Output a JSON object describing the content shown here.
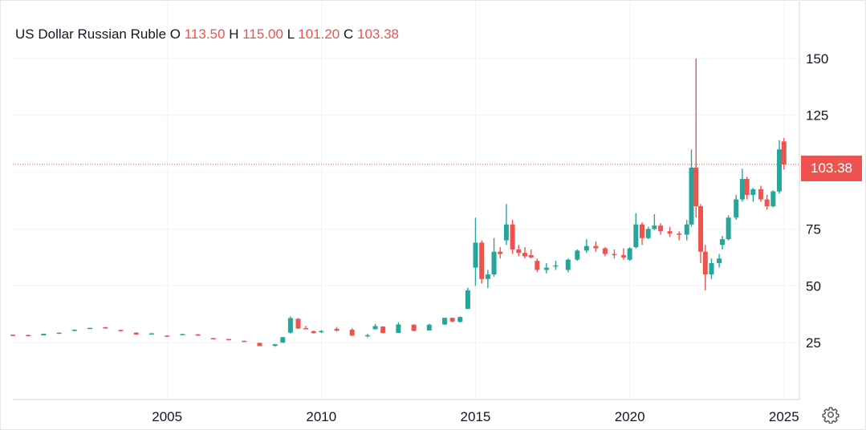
{
  "legend": {
    "title": "US Dollar Russian Ruble",
    "o_label": "O",
    "o_value": "113.50",
    "h_label": "H",
    "h_value": "115.00",
    "l_label": "L",
    "l_value": "101.20",
    "c_label": "C",
    "c_value": "103.38"
  },
  "last_price_label": "103.38",
  "icons": {
    "settings": "gear-icon"
  },
  "colors": {
    "up": "#26a69a",
    "down": "#ef5350",
    "grid": "#f0f3fa",
    "text": "#131722"
  },
  "chart_data": {
    "type": "candlestick",
    "title": "US Dollar Russian Ruble",
    "xlabel": "",
    "ylabel": "",
    "x_ticks": [
      "2005",
      "2010",
      "2015",
      "2020",
      "2025"
    ],
    "y_ticks": [
      25,
      50,
      75,
      100,
      125,
      150
    ],
    "y_tick_labels": [
      "25",
      "50",
      "75",
      "125",
      "150"
    ],
    "ylim": [
      0,
      175
    ],
    "xlim": [
      2000.0,
      2025.5
    ],
    "grid": true,
    "last_price": 103.38,
    "last_price_line": true,
    "points": [
      [
        2000.0,
        28.5,
        28.6,
        28.3,
        28.4
      ],
      [
        2000.5,
        28.4,
        28.5,
        27.8,
        27.9
      ],
      [
        2001.0,
        28.2,
        29.0,
        28.2,
        28.9
      ],
      [
        2001.5,
        29.1,
        29.5,
        29.0,
        29.4
      ],
      [
        2002.0,
        30.2,
        30.8,
        30.1,
        30.7
      ],
      [
        2002.5,
        31.3,
        31.6,
        31.2,
        31.5
      ],
      [
        2003.0,
        31.8,
        31.9,
        31.2,
        31.3
      ],
      [
        2003.5,
        30.6,
        30.7,
        30.0,
        30.1
      ],
      [
        2004.0,
        29.4,
        29.6,
        28.5,
        28.6
      ],
      [
        2004.5,
        29.0,
        29.2,
        28.8,
        29.1
      ],
      [
        2005.0,
        28.1,
        28.2,
        27.8,
        27.9
      ],
      [
        2005.5,
        28.6,
        28.9,
        28.4,
        28.8
      ],
      [
        2006.0,
        28.7,
        28.8,
        28.0,
        28.1
      ],
      [
        2006.5,
        27.0,
        27.1,
        26.7,
        26.8
      ],
      [
        2007.0,
        26.6,
        26.7,
        26.0,
        26.1
      ],
      [
        2007.5,
        25.8,
        25.9,
        25.4,
        25.5
      ],
      [
        2008.0,
        24.9,
        25.0,
        23.4,
        23.5
      ],
      [
        2008.5,
        23.6,
        24.5,
        23.2,
        24.3
      ],
      [
        2008.75,
        25.0,
        27.5,
        24.9,
        27.4
      ],
      [
        2009.0,
        29.4,
        36.5,
        29.0,
        35.8
      ],
      [
        2009.25,
        35.5,
        35.8,
        31.0,
        31.2
      ],
      [
        2009.5,
        31.4,
        32.4,
        30.9,
        31.1
      ],
      [
        2009.75,
        30.0,
        30.4,
        29.0,
        29.2
      ],
      [
        2010.0,
        29.8,
        30.6,
        29.3,
        30.1
      ],
      [
        2010.5,
        31.1,
        31.9,
        29.9,
        30.3
      ],
      [
        2011.0,
        30.7,
        31.3,
        28.0,
        28.1
      ],
      [
        2011.5,
        27.9,
        28.9,
        27.3,
        28.3
      ],
      [
        2011.75,
        30.9,
        33.2,
        30.8,
        32.3
      ],
      [
        2012.0,
        32.1,
        32.3,
        29.0,
        29.3
      ],
      [
        2012.5,
        29.3,
        34.0,
        29.2,
        33.0
      ],
      [
        2013.0,
        32.9,
        33.1,
        30.0,
        30.2
      ],
      [
        2013.5,
        30.4,
        33.3,
        30.3,
        32.9
      ],
      [
        2014.0,
        33.0,
        36.0,
        32.8,
        35.9
      ],
      [
        2014.25,
        35.9,
        36.0,
        34.0,
        34.3
      ],
      [
        2014.5,
        34.2,
        36.5,
        33.8,
        36.3
      ],
      [
        2014.75,
        39.9,
        49.2,
        39.8,
        48.0
      ],
      [
        2015.0,
        58.0,
        80.0,
        50.0,
        69.0
      ],
      [
        2015.2,
        69.0,
        70.0,
        51.0,
        53.0
      ],
      [
        2015.4,
        53.0,
        57.0,
        49.0,
        55.0
      ],
      [
        2015.6,
        55.0,
        71.0,
        54.0,
        65.0
      ],
      [
        2015.8,
        65.0,
        67.0,
        62.0,
        64.0
      ],
      [
        2016.0,
        70.0,
        86.0,
        68.0,
        77.0
      ],
      [
        2016.2,
        77.0,
        79.0,
        64.0,
        66.0
      ],
      [
        2016.4,
        66.0,
        68.0,
        63.0,
        64.5
      ],
      [
        2016.6,
        64.5,
        67.0,
        62.0,
        63.0
      ],
      [
        2016.8,
        63.5,
        66.0,
        62.0,
        62.5
      ],
      [
        2017.0,
        61.0,
        62.0,
        56.0,
        57.0
      ],
      [
        2017.3,
        57.0,
        60.0,
        55.5,
        58.0
      ],
      [
        2017.6,
        58.5,
        61.0,
        57.0,
        59.0
      ],
      [
        2018.0,
        57.0,
        62.0,
        56.0,
        61.5
      ],
      [
        2018.3,
        61.5,
        66.0,
        61.0,
        65.5
      ],
      [
        2018.6,
        65.5,
        70.5,
        64.5,
        67.5
      ],
      [
        2018.9,
        67.5,
        69.5,
        65.0,
        66.5
      ],
      [
        2019.2,
        66.5,
        67.0,
        63.0,
        64.0
      ],
      [
        2019.5,
        64.0,
        66.0,
        62.0,
        63.5
      ],
      [
        2019.8,
        63.5,
        66.5,
        61.5,
        62.5
      ],
      [
        2020.0,
        61.5,
        67.0,
        61.0,
        66.5
      ],
      [
        2020.2,
        67.0,
        82.0,
        66.5,
        77.0
      ],
      [
        2020.4,
        77.0,
        78.0,
        68.0,
        71.0
      ],
      [
        2020.6,
        71.0,
        76.0,
        70.5,
        75.0
      ],
      [
        2020.8,
        75.0,
        81.5,
        74.5,
        76.5
      ],
      [
        2021.0,
        76.5,
        77.5,
        72.5,
        74.0
      ],
      [
        2021.3,
        74.0,
        76.0,
        71.5,
        73.0
      ],
      [
        2021.6,
        73.0,
        74.0,
        70.0,
        72.5
      ],
      [
        2021.85,
        72.5,
        79.0,
        70.0,
        77.0
      ],
      [
        2022.0,
        77.0,
        110.0,
        76.0,
        102.0
      ],
      [
        2022.15,
        102.0,
        150.0,
        80.0,
        85.0
      ],
      [
        2022.3,
        85.0,
        86.0,
        60.0,
        65.0
      ],
      [
        2022.45,
        65.0,
        68.0,
        48.0,
        55.0
      ],
      [
        2022.65,
        55.0,
        62.0,
        53.0,
        60.0
      ],
      [
        2022.9,
        60.0,
        64.0,
        58.0,
        62.0
      ],
      [
        2023.0,
        68.0,
        72.0,
        66.0,
        70.5
      ],
      [
        2023.2,
        70.5,
        81.0,
        70.0,
        80.0
      ],
      [
        2023.45,
        80.0,
        90.0,
        79.0,
        88.0
      ],
      [
        2023.65,
        88.0,
        101.5,
        87.0,
        97.0
      ],
      [
        2023.8,
        97.0,
        98.0,
        88.0,
        90.0
      ],
      [
        2024.0,
        90.0,
        93.0,
        87.0,
        92.5
      ],
      [
        2024.25,
        92.5,
        94.0,
        87.0,
        88.0
      ],
      [
        2024.45,
        88.0,
        90.0,
        83.5,
        85.0
      ],
      [
        2024.65,
        85.0,
        92.0,
        84.5,
        91.5
      ],
      [
        2024.85,
        91.5,
        114.0,
        90.5,
        110.0
      ],
      [
        2025.0,
        113.5,
        115.0,
        101.2,
        103.38
      ]
    ]
  }
}
